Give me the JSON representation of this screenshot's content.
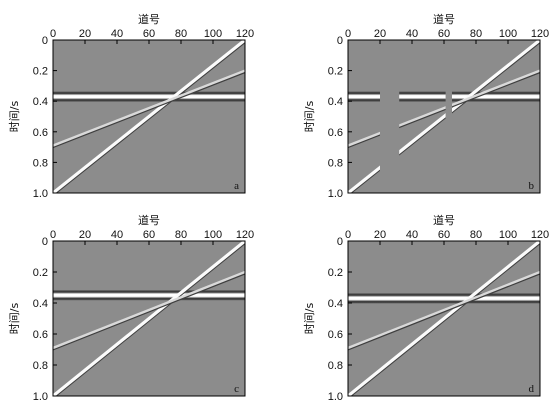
{
  "chart_data": [
    {
      "type": "seismic-section",
      "panel_label": "a",
      "xlabel": "道号",
      "ylabel": "时间/s",
      "x_ticks": [
        "0",
        "20",
        "40",
        "60",
        "80",
        "100",
        "120"
      ],
      "y_ticks": [
        "0",
        "0.2",
        "0.4",
        "0.6",
        "0.8",
        "1.0"
      ],
      "xlim": [
        0,
        120
      ],
      "ylim": [
        0,
        1.0
      ],
      "events": [
        {
          "trace": [
            0,
            120
          ],
          "time": [
            0.37,
            0.37
          ]
        },
        {
          "trace": [
            0,
            120
          ],
          "time": [
            1.0,
            0.0
          ]
        },
        {
          "trace": [
            0,
            120
          ],
          "time": [
            0.69,
            0.2
          ]
        }
      ],
      "gaps": []
    },
    {
      "type": "seismic-section",
      "panel_label": "b",
      "xlabel": "道号",
      "ylabel": "时间/s",
      "x_ticks": [
        "0",
        "20",
        "40",
        "60",
        "80",
        "100",
        "120"
      ],
      "y_ticks": [
        "0",
        "0.2",
        "0.4",
        "0.6",
        "0.8",
        "1.0"
      ],
      "xlim": [
        0,
        120
      ],
      "ylim": [
        0,
        1.0
      ],
      "events": [
        {
          "trace": [
            0,
            120
          ],
          "time": [
            0.37,
            0.37
          ]
        },
        {
          "trace": [
            0,
            120
          ],
          "time": [
            1.0,
            0.0
          ]
        },
        {
          "trace": [
            0,
            120
          ],
          "time": [
            0.69,
            0.2
          ]
        }
      ],
      "gaps": [
        [
          20,
          32
        ],
        [
          61,
          65
        ]
      ]
    },
    {
      "type": "seismic-section",
      "panel_label": "c",
      "xlabel": "道号",
      "ylabel": "时间/s",
      "x_ticks": [
        "0",
        "20",
        "40",
        "60",
        "80",
        "100",
        "120"
      ],
      "y_ticks": [
        "0",
        "0.2",
        "0.4",
        "0.6",
        "0.8",
        "1.0"
      ],
      "xlim": [
        0,
        120
      ],
      "ylim": [
        0,
        1.0
      ],
      "events": [
        {
          "trace": [
            0,
            120
          ],
          "time": [
            0.35,
            0.35
          ]
        },
        {
          "trace": [
            0,
            120
          ],
          "time": [
            1.0,
            0.0
          ]
        },
        {
          "trace": [
            0,
            120
          ],
          "time": [
            0.69,
            0.2
          ]
        }
      ],
      "gaps": []
    },
    {
      "type": "seismic-section",
      "panel_label": "d",
      "xlabel": "道号",
      "ylabel": "时间/s",
      "x_ticks": [
        "0",
        "20",
        "40",
        "60",
        "80",
        "100",
        "120"
      ],
      "y_ticks": [
        "0",
        "0.2",
        "0.4",
        "0.6",
        "0.8",
        "1.0"
      ],
      "xlim": [
        0,
        120
      ],
      "ylim": [
        0,
        1.0
      ],
      "events": [
        {
          "trace": [
            0,
            120
          ],
          "time": [
            0.37,
            0.37
          ]
        },
        {
          "trace": [
            0,
            120
          ],
          "time": [
            1.0,
            0.0
          ]
        },
        {
          "trace": [
            0,
            120
          ],
          "time": [
            0.69,
            0.2
          ]
        }
      ],
      "gaps": []
    }
  ]
}
